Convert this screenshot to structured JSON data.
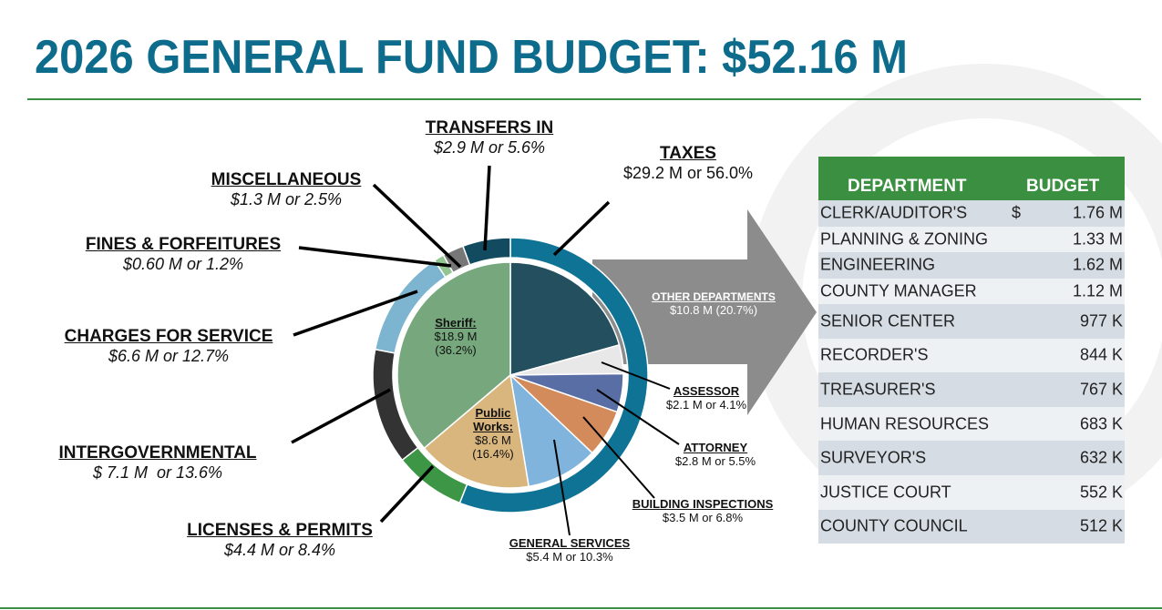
{
  "header": {
    "title": "2026 GENERAL FUND BUDGET:  $52.16 M"
  },
  "chart_data": [
    {
      "type": "donut",
      "categories": [
        "TAXES",
        "LICENSES & PERMITS",
        "INTERGOVERNMENTAL",
        "CHARGES FOR SERVICE",
        "FINES & FORFEITURES",
        "MISCELLANEOUS",
        "TRANSFERS IN"
      ],
      "values": [
        56.0,
        8.4,
        13.6,
        12.7,
        1.2,
        2.5,
        5.6
      ],
      "value_labels": [
        "$29.2 M or 56.0%",
        "$4.4 M or 8.4%",
        "$ 7.1 M  or 13.6%",
        "$6.6 M or 12.7%",
        "$0.60 M or 1.2%",
        "$1.3 M or 2.5%",
        "$2.9 M or 5.6%"
      ],
      "colors": [
        "#0f7396",
        "#3c9645",
        "#333333",
        "#7db4d0",
        "#93c593",
        "#777777",
        "#124a60"
      ]
    },
    {
      "type": "pie",
      "categories": [
        "OTHER DEPARTMENTS",
        "ASSESSOR",
        "ATTORNEY",
        "BUILDING INSPECTIONS",
        "GENERAL SERVICES",
        "Public Works:",
        "Sheriff:"
      ],
      "values": [
        20.7,
        4.1,
        5.5,
        6.8,
        10.3,
        16.4,
        36.2
      ],
      "value_labels": [
        "$10.8 M (20.7%)",
        "$2.1 M or 4.1%",
        "$2.8 M or 5.5%",
        "$3.5 M or 6.8%",
        "$5.4 M or 10.3%",
        "$8.6 M (16.4%)",
        "$18.9 M (36.2%)"
      ],
      "colors": [
        "#244f5e",
        "#e8e8e8",
        "#5a6ea6",
        "#d38b5c",
        "#80b4dc",
        "#d9b67d",
        "#77a87d"
      ]
    }
  ],
  "table": {
    "columns": [
      "DEPARTMENT",
      "BUDGET"
    ],
    "rows": [
      {
        "department": "CLERK/AUDITOR'S",
        "currency": "$",
        "budget": "1.76 M"
      },
      {
        "department": "PLANNING & ZONING",
        "budget": "1.33 M"
      },
      {
        "department": "ENGINEERING",
        "budget": "1.62 M"
      },
      {
        "department": "COUNTY MANAGER",
        "budget": "1.12 M"
      },
      {
        "department": "SENIOR CENTER",
        "budget": "977 K"
      },
      {
        "department": "RECORDER'S",
        "budget": "844 K"
      },
      {
        "department": "TREASURER'S",
        "budget": "767 K"
      },
      {
        "department": "HUMAN RESOURCES",
        "budget": "683 K"
      },
      {
        "department": "SURVEYOR'S",
        "budget": "632 K"
      },
      {
        "department": "JUSTICE COURT",
        "budget": "552 K"
      },
      {
        "department": "COUNTY COUNCIL",
        "budget": "512 K"
      }
    ]
  }
}
